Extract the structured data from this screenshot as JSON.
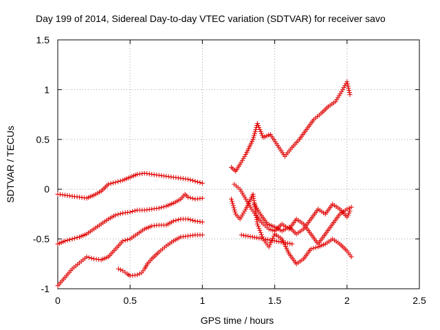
{
  "chart_data": {
    "type": "scatter",
    "title": "Day 199 of 2014, Sidereal Day-to-day VTEC variation (SDTVAR) for receiver savo",
    "xlabel": "GPS time / hours",
    "ylabel": "SDTVAR / TECUs",
    "xlim": [
      0,
      2.5
    ],
    "ylim": [
      -1,
      1.5
    ],
    "xticks": [
      "0",
      "0.5",
      "1",
      "1.5",
      "2",
      "2.5"
    ],
    "yticks": [
      "-1",
      "-0.5",
      "0",
      "0.5",
      "1",
      "1.5"
    ],
    "grid": true,
    "marker": "+",
    "series": [
      {
        "name": "track-1",
        "color": "#e00000",
        "points": [
          [
            0.0,
            -0.05
          ],
          [
            0.05,
            -0.06
          ],
          [
            0.1,
            -0.07
          ],
          [
            0.15,
            -0.08
          ],
          [
            0.2,
            -0.09
          ],
          [
            0.25,
            -0.06
          ],
          [
            0.3,
            -0.02
          ],
          [
            0.35,
            0.05
          ],
          [
            0.4,
            0.07
          ],
          [
            0.45,
            0.09
          ],
          [
            0.5,
            0.12
          ],
          [
            0.55,
            0.15
          ],
          [
            0.6,
            0.16
          ],
          [
            0.65,
            0.15
          ],
          [
            0.7,
            0.14
          ],
          [
            0.75,
            0.13
          ],
          [
            0.8,
            0.12
          ],
          [
            0.85,
            0.11
          ],
          [
            0.9,
            0.1
          ],
          [
            0.95,
            0.08
          ],
          [
            1.0,
            0.06
          ]
        ]
      },
      {
        "name": "track-2",
        "color": "#e00000",
        "points": [
          [
            0.0,
            -0.55
          ],
          [
            0.05,
            -0.52
          ],
          [
            0.1,
            -0.5
          ],
          [
            0.15,
            -0.48
          ],
          [
            0.2,
            -0.45
          ],
          [
            0.25,
            -0.4
          ],
          [
            0.3,
            -0.35
          ],
          [
            0.35,
            -0.3
          ],
          [
            0.4,
            -0.26
          ],
          [
            0.45,
            -0.24
          ],
          [
            0.5,
            -0.23
          ],
          [
            0.55,
            -0.21
          ],
          [
            0.6,
            -0.21
          ],
          [
            0.65,
            -0.2
          ],
          [
            0.7,
            -0.19
          ],
          [
            0.75,
            -0.17
          ],
          [
            0.8,
            -0.14
          ],
          [
            0.85,
            -0.1
          ],
          [
            0.88,
            -0.05
          ],
          [
            0.9,
            -0.08
          ],
          [
            0.95,
            -0.1
          ],
          [
            1.0,
            -0.09
          ]
        ]
      },
      {
        "name": "track-3",
        "color": "#e00000",
        "points": [
          [
            0.0,
            -0.97
          ],
          [
            0.03,
            -0.92
          ],
          [
            0.06,
            -0.87
          ],
          [
            0.1,
            -0.8
          ],
          [
            0.15,
            -0.74
          ],
          [
            0.2,
            -0.68
          ],
          [
            0.25,
            -0.7
          ],
          [
            0.3,
            -0.71
          ],
          [
            0.35,
            -0.68
          ],
          [
            0.4,
            -0.6
          ],
          [
            0.45,
            -0.52
          ],
          [
            0.5,
            -0.5
          ],
          [
            0.55,
            -0.45
          ],
          [
            0.6,
            -0.4
          ],
          [
            0.65,
            -0.37
          ],
          [
            0.7,
            -0.36
          ],
          [
            0.75,
            -0.36
          ],
          [
            0.8,
            -0.32
          ],
          [
            0.85,
            -0.3
          ],
          [
            0.9,
            -0.3
          ],
          [
            0.95,
            -0.32
          ],
          [
            1.0,
            -0.33
          ]
        ]
      },
      {
        "name": "track-4",
        "color": "#e00000",
        "points": [
          [
            0.42,
            -0.8
          ],
          [
            0.45,
            -0.82
          ],
          [
            0.48,
            -0.85
          ],
          [
            0.5,
            -0.87
          ],
          [
            0.55,
            -0.86
          ],
          [
            0.58,
            -0.84
          ],
          [
            0.6,
            -0.8
          ],
          [
            0.62,
            -0.75
          ],
          [
            0.65,
            -0.7
          ],
          [
            0.7,
            -0.63
          ],
          [
            0.75,
            -0.57
          ],
          [
            0.8,
            -0.52
          ],
          [
            0.85,
            -0.48
          ],
          [
            0.9,
            -0.47
          ],
          [
            0.95,
            -0.46
          ],
          [
            1.0,
            -0.46
          ]
        ]
      },
      {
        "name": "track-5",
        "color": "#e00000",
        "points": [
          [
            1.2,
            0.22
          ],
          [
            1.23,
            0.18
          ],
          [
            1.26,
            0.25
          ],
          [
            1.3,
            0.35
          ],
          [
            1.35,
            0.5
          ],
          [
            1.38,
            0.66
          ],
          [
            1.42,
            0.52
          ],
          [
            1.47,
            0.55
          ],
          [
            1.52,
            0.44
          ],
          [
            1.57,
            0.33
          ],
          [
            1.62,
            0.42
          ],
          [
            1.67,
            0.5
          ],
          [
            1.72,
            0.6
          ],
          [
            1.77,
            0.7
          ],
          [
            1.82,
            0.76
          ],
          [
            1.87,
            0.83
          ],
          [
            1.92,
            0.88
          ],
          [
            1.97,
            1.0
          ],
          [
            2.0,
            1.08
          ],
          [
            2.02,
            0.95
          ]
        ]
      },
      {
        "name": "track-6",
        "color": "#e00000",
        "points": [
          [
            1.2,
            -0.1
          ],
          [
            1.23,
            -0.25
          ],
          [
            1.26,
            -0.3
          ],
          [
            1.3,
            -0.2
          ],
          [
            1.35,
            -0.05
          ],
          [
            1.38,
            -0.35
          ],
          [
            1.42,
            -0.5
          ],
          [
            1.46,
            -0.58
          ],
          [
            1.5,
            -0.45
          ],
          [
            1.55,
            -0.5
          ],
          [
            1.6,
            -0.65
          ],
          [
            1.65,
            -0.75
          ],
          [
            1.7,
            -0.7
          ],
          [
            1.75,
            -0.6
          ],
          [
            1.8,
            -0.58
          ],
          [
            1.85,
            -0.55
          ],
          [
            1.9,
            -0.5
          ],
          [
            1.95,
            -0.55
          ],
          [
            2.0,
            -0.62
          ],
          [
            2.03,
            -0.68
          ]
        ]
      },
      {
        "name": "track-7",
        "color": "#e00000",
        "points": [
          [
            1.22,
            0.05
          ],
          [
            1.26,
            0.0
          ],
          [
            1.3,
            -0.1
          ],
          [
            1.34,
            -0.2
          ],
          [
            1.38,
            -0.28
          ],
          [
            1.42,
            -0.35
          ],
          [
            1.46,
            -0.4
          ],
          [
            1.5,
            -0.42
          ],
          [
            1.55,
            -0.35
          ],
          [
            1.6,
            -0.4
          ],
          [
            1.65,
            -0.3
          ],
          [
            1.7,
            -0.35
          ],
          [
            1.75,
            -0.45
          ],
          [
            1.8,
            -0.55
          ],
          [
            1.85,
            -0.45
          ],
          [
            1.9,
            -0.35
          ],
          [
            1.95,
            -0.25
          ],
          [
            2.0,
            -0.2
          ],
          [
            2.03,
            -0.18
          ]
        ]
      },
      {
        "name": "track-8",
        "color": "#e00000",
        "points": [
          [
            1.36,
            -0.15
          ],
          [
            1.4,
            -0.25
          ],
          [
            1.45,
            -0.35
          ],
          [
            1.5,
            -0.38
          ],
          [
            1.55,
            -0.42
          ],
          [
            1.6,
            -0.38
          ],
          [
            1.65,
            -0.45
          ],
          [
            1.7,
            -0.4
          ],
          [
            1.75,
            -0.3
          ],
          [
            1.8,
            -0.2
          ],
          [
            1.85,
            -0.25
          ],
          [
            1.9,
            -0.15
          ],
          [
            1.95,
            -0.2
          ],
          [
            2.0,
            -0.28
          ],
          [
            2.02,
            -0.22
          ]
        ]
      },
      {
        "name": "isolated",
        "color": "#e00000",
        "points": [
          [
            1.27,
            -0.46
          ],
          [
            1.62,
            -0.55
          ]
        ]
      }
    ]
  }
}
